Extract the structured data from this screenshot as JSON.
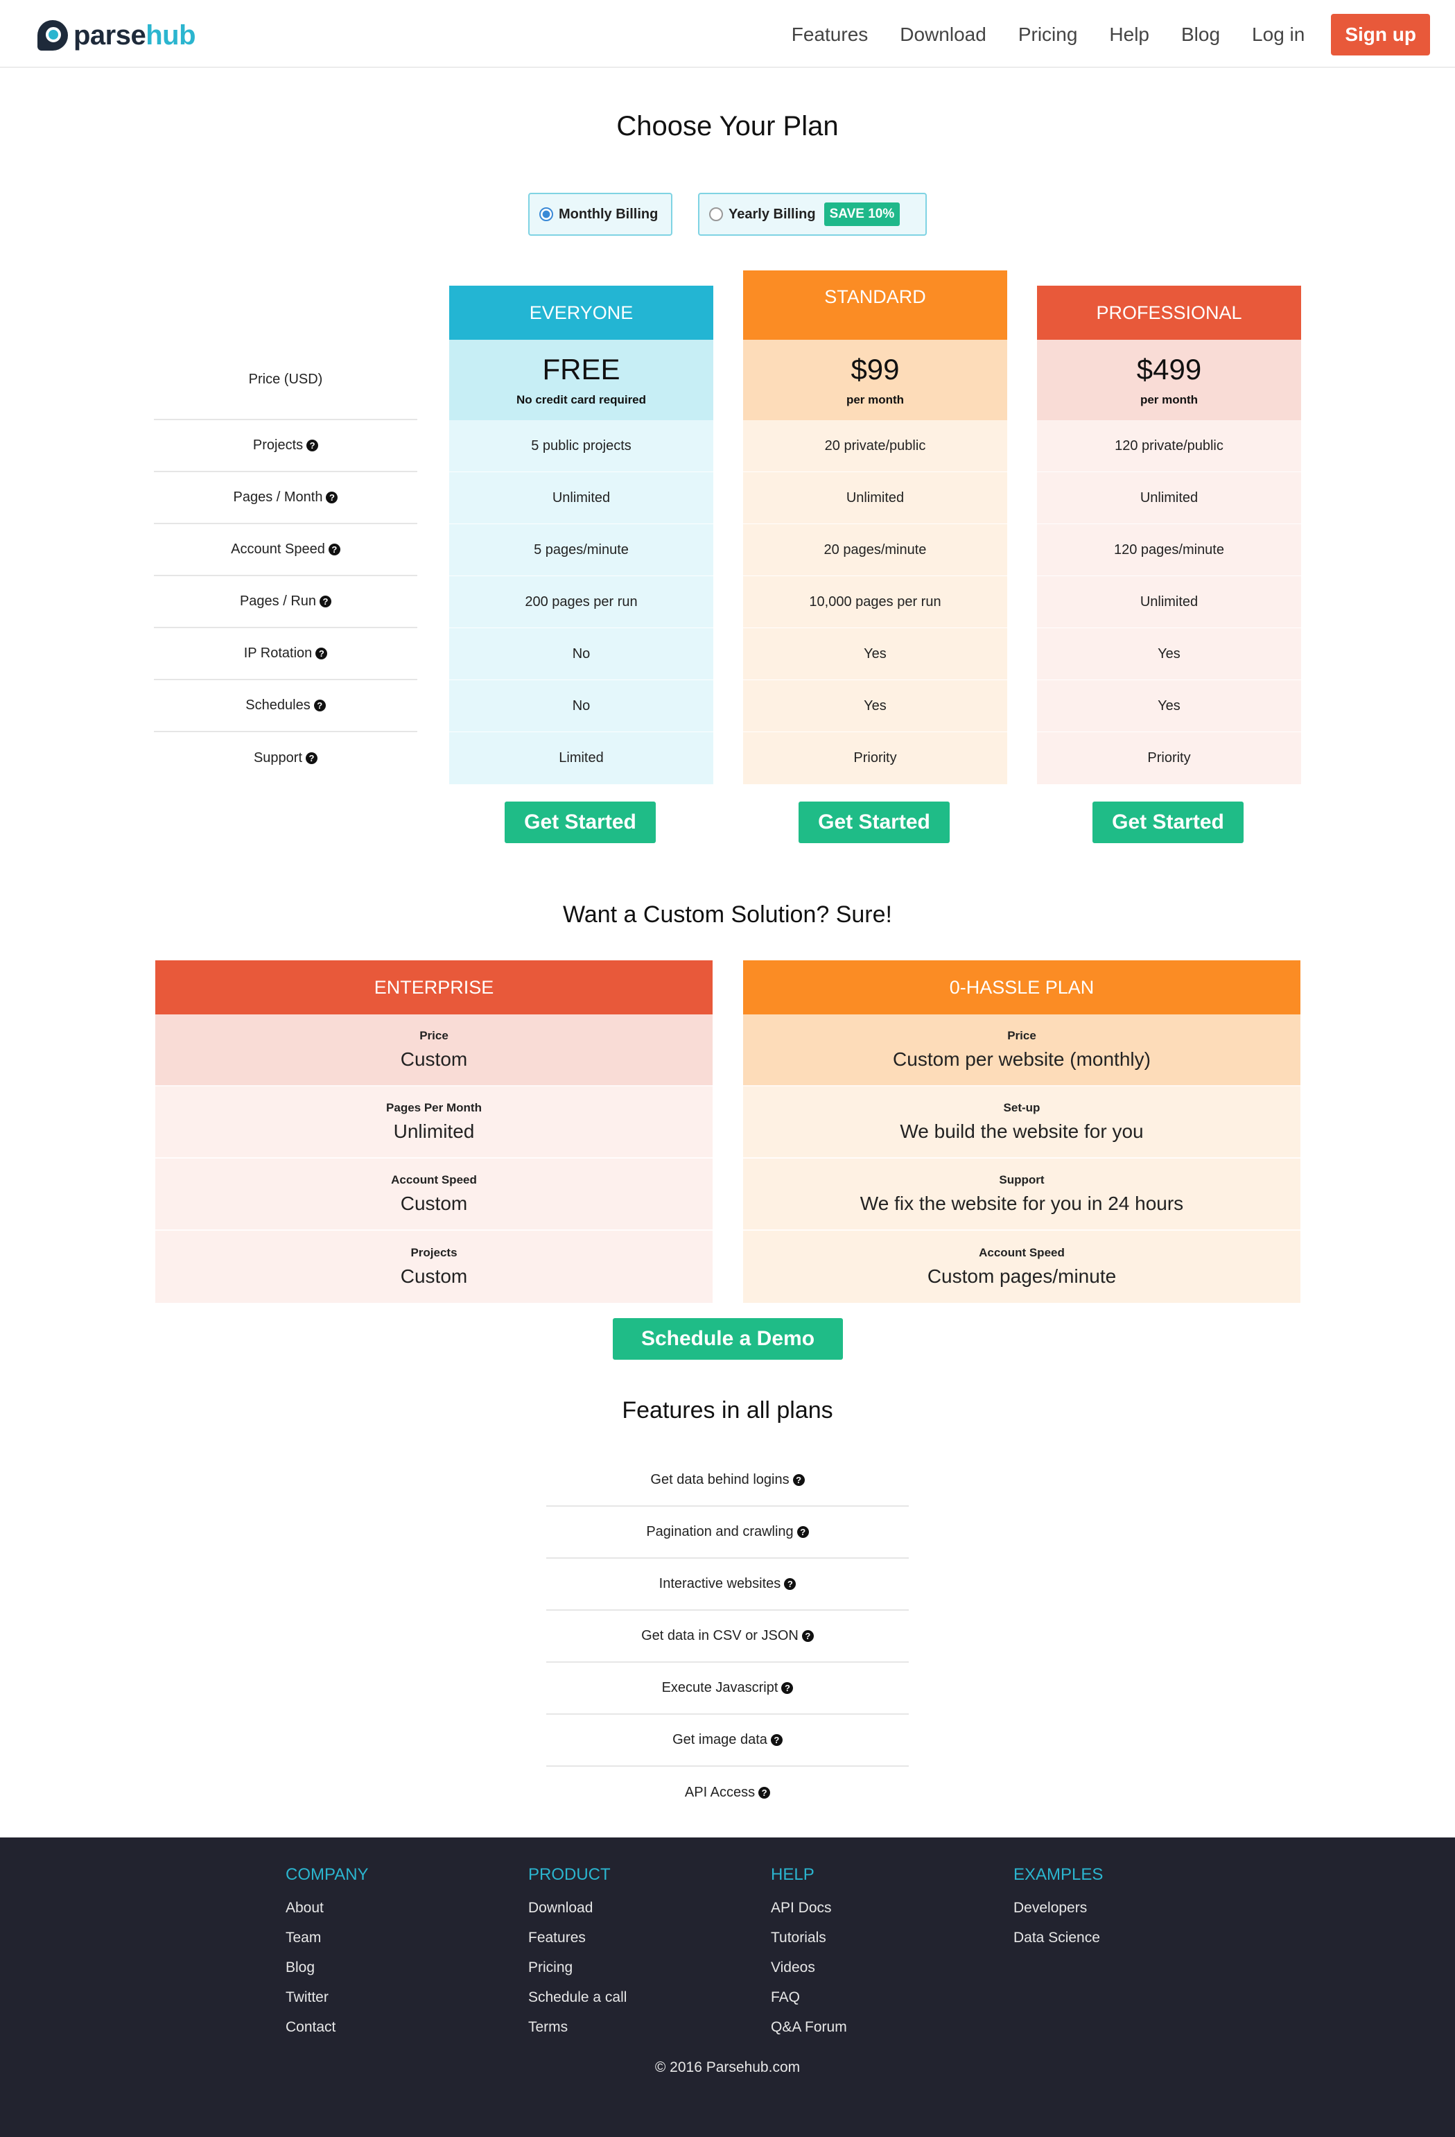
{
  "nav": {
    "logo_part1": "parse",
    "logo_part2": "hub",
    "links": [
      "Features",
      "Download",
      "Pricing",
      "Help",
      "Blog",
      "Log in"
    ],
    "signup": "Sign up"
  },
  "pricing": {
    "title": "Choose Your Plan",
    "billing_monthly": "Monthly Billing",
    "billing_yearly": "Yearly Billing",
    "save_badge": "SAVE 10%",
    "row_labels": [
      "Price (USD)",
      "Projects",
      "Pages / Month",
      "Account Speed",
      "Pages / Run",
      "IP Rotation",
      "Schedules",
      "Support"
    ],
    "plans": [
      {
        "name": "EVERYONE",
        "price": "FREE",
        "price_sub": "No credit card required",
        "cells": [
          "5 public projects",
          "Unlimited",
          "5 pages/minute",
          "200 pages per run",
          "No",
          "No",
          "Limited"
        ],
        "button": "Get Started",
        "head_color": "#23b5d3",
        "price_bg": "#c7eef5",
        "cell_bg": "#e4f7fb"
      },
      {
        "name": "STANDARD",
        "price": "$99",
        "price_sub": "per month",
        "cells": [
          "20 private/public",
          "Unlimited",
          "20 pages/minute",
          "10,000 pages per run",
          "Yes",
          "Yes",
          "Priority"
        ],
        "button": "Get Started",
        "head_color": "#fb8c24",
        "price_bg": "#fddcb9",
        "cell_bg": "#fef1e3"
      },
      {
        "name": "PROFESSIONAL",
        "price": "$499",
        "price_sub": "per month",
        "cells": [
          "120 private/public",
          "Unlimited",
          "120 pages/minute",
          "Unlimited",
          "Yes",
          "Yes",
          "Priority"
        ],
        "button": "Get Started",
        "head_color": "#e8593a",
        "price_bg": "#f9dcd6",
        "cell_bg": "#fdf0ed"
      }
    ]
  },
  "custom": {
    "title": "Want a Custom Solution? Sure!",
    "enterprise": {
      "name": "ENTERPRISE",
      "rows": [
        {
          "label": "Price",
          "value": "Custom"
        },
        {
          "label": "Pages Per Month",
          "value": "Unlimited"
        },
        {
          "label": "Account Speed",
          "value": "Custom"
        },
        {
          "label": "Projects",
          "value": "Custom"
        }
      ]
    },
    "zero_hassle": {
      "name": "0-HASSLE PLAN",
      "rows": [
        {
          "label": "Price",
          "value": "Custom per website (monthly)"
        },
        {
          "label": "Set-up",
          "value": "We build the website for you"
        },
        {
          "label": "Support",
          "value": "We fix the website for you in 24 hours"
        },
        {
          "label": "Account Speed",
          "value": "Custom pages/minute"
        }
      ]
    },
    "demo_button": "Schedule a Demo"
  },
  "features": {
    "title": "Features in all plans",
    "items": [
      "Get data behind logins",
      "Pagination and crawling",
      "Interactive websites",
      "Get data in CSV or JSON",
      "Execute Javascript",
      "Get image data",
      "API Access"
    ]
  },
  "footer": {
    "columns": [
      {
        "heading": "COMPANY",
        "links": [
          "About",
          "Team",
          "Blog",
          "Twitter",
          "Contact"
        ]
      },
      {
        "heading": "PRODUCT",
        "links": [
          "Download",
          "Features",
          "Pricing",
          "Schedule a call",
          "Terms"
        ]
      },
      {
        "heading": "HELP",
        "links": [
          "API Docs",
          "Tutorials",
          "Videos",
          "FAQ",
          "Q&A Forum"
        ]
      },
      {
        "heading": "EXAMPLES",
        "links": [
          "Developers",
          "Data Science"
        ]
      }
    ],
    "copyright": "© 2016 Parsehub.com"
  }
}
